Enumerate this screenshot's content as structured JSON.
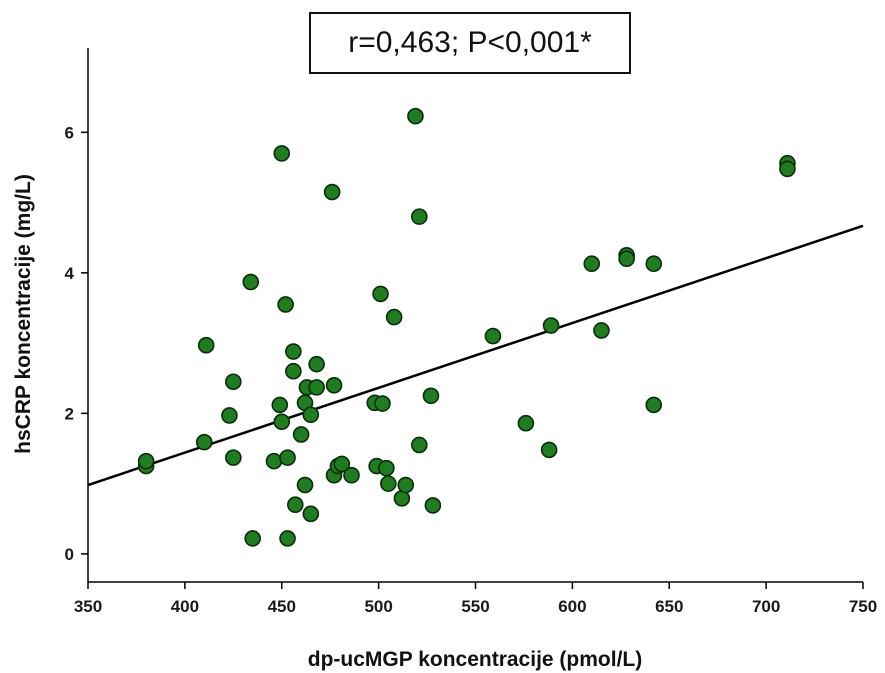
{
  "chart_data": {
    "type": "scatter",
    "annotation": "r=0,463; P<0,001*",
    "xlabel": "dp-ucMGP koncentracije (pmol/L)",
    "ylabel": "hsCRP koncentracije (mg/L)",
    "xlim": [
      350,
      750
    ],
    "ylim": [
      -0.4,
      7.2
    ],
    "xticks": [
      350,
      400,
      450,
      500,
      550,
      600,
      650,
      700,
      750
    ],
    "yticks": [
      0,
      2,
      4,
      6
    ],
    "marker_color": "#1e7d1e",
    "marker_edge": "#0b2b0b",
    "line_color": "#000000",
    "regression": {
      "x": [
        350,
        750
      ],
      "y": [
        0.98,
        4.67
      ]
    },
    "points": [
      {
        "x": 380,
        "y": 1.25
      },
      {
        "x": 380,
        "y": 1.32
      },
      {
        "x": 410,
        "y": 1.59
      },
      {
        "x": 411,
        "y": 2.97
      },
      {
        "x": 423,
        "y": 1.97
      },
      {
        "x": 425,
        "y": 2.45
      },
      {
        "x": 425,
        "y": 1.37
      },
      {
        "x": 434,
        "y": 3.87
      },
      {
        "x": 435,
        "y": 0.22
      },
      {
        "x": 446,
        "y": 1.32
      },
      {
        "x": 449,
        "y": 2.12
      },
      {
        "x": 450,
        "y": 1.88
      },
      {
        "x": 450,
        "y": 5.7
      },
      {
        "x": 452,
        "y": 3.55
      },
      {
        "x": 453,
        "y": 0.22
      },
      {
        "x": 453,
        "y": 1.37
      },
      {
        "x": 456,
        "y": 2.88
      },
      {
        "x": 456,
        "y": 2.6
      },
      {
        "x": 457,
        "y": 0.7
      },
      {
        "x": 460,
        "y": 1.7
      },
      {
        "x": 462,
        "y": 2.15
      },
      {
        "x": 462,
        "y": 0.98
      },
      {
        "x": 463,
        "y": 2.37
      },
      {
        "x": 465,
        "y": 1.98
      },
      {
        "x": 465,
        "y": 0.57
      },
      {
        "x": 468,
        "y": 2.37
      },
      {
        "x": 468,
        "y": 2.7
      },
      {
        "x": 476,
        "y": 5.15
      },
      {
        "x": 477,
        "y": 1.12
      },
      {
        "x": 477,
        "y": 2.4
      },
      {
        "x": 479,
        "y": 1.25
      },
      {
        "x": 481,
        "y": 1.28
      },
      {
        "x": 486,
        "y": 1.12
      },
      {
        "x": 498,
        "y": 2.15
      },
      {
        "x": 499,
        "y": 1.25
      },
      {
        "x": 501,
        "y": 3.7
      },
      {
        "x": 502,
        "y": 2.14
      },
      {
        "x": 504,
        "y": 1.22
      },
      {
        "x": 505,
        "y": 1.0
      },
      {
        "x": 508,
        "y": 3.37
      },
      {
        "x": 512,
        "y": 0.79
      },
      {
        "x": 514,
        "y": 0.98
      },
      {
        "x": 519,
        "y": 6.23
      },
      {
        "x": 521,
        "y": 4.8
      },
      {
        "x": 521,
        "y": 1.55
      },
      {
        "x": 527,
        "y": 2.25
      },
      {
        "x": 528,
        "y": 0.69
      },
      {
        "x": 559,
        "y": 3.1
      },
      {
        "x": 576,
        "y": 1.86
      },
      {
        "x": 588,
        "y": 1.48
      },
      {
        "x": 589,
        "y": 3.25
      },
      {
        "x": 610,
        "y": 4.13
      },
      {
        "x": 615,
        "y": 3.18
      },
      {
        "x": 628,
        "y": 4.25
      },
      {
        "x": 628,
        "y": 4.2
      },
      {
        "x": 642,
        "y": 4.13
      },
      {
        "x": 642,
        "y": 2.12
      },
      {
        "x": 711,
        "y": 5.56
      },
      {
        "x": 711,
        "y": 5.48
      }
    ]
  }
}
